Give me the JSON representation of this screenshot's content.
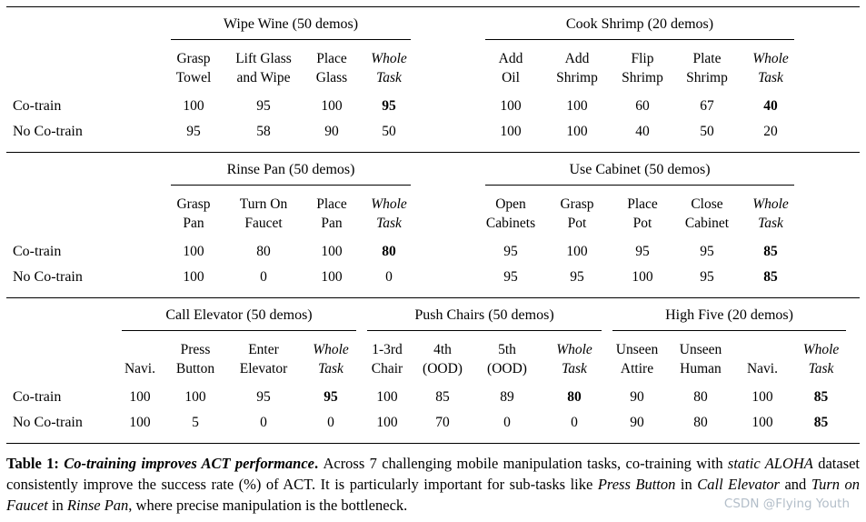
{
  "table": {
    "sections": [
      {
        "groups": [
          {
            "title": "Wipe Wine (50 demos)",
            "columns": [
              "Grasp\nTowel",
              "Lift Glass\nand Wipe",
              "Place\nGlass",
              "Whole\nTask"
            ]
          },
          {
            "title": "Cook Shrimp (20 demos)",
            "columns": [
              "Add\nOil",
              "Add\nShrimp",
              "Flip\nShrimp",
              "Plate\nShrimp",
              "Whole\nTask"
            ]
          }
        ],
        "rows": [
          {
            "label": "Co-train",
            "values": [
              "100",
              "95",
              "100",
              "95",
              "100",
              "100",
              "60",
              "67",
              "40"
            ]
          },
          {
            "label": "No Co-train",
            "values": [
              "95",
              "58",
              "90",
              "50",
              "100",
              "100",
              "40",
              "50",
              "20"
            ]
          }
        ]
      },
      {
        "groups": [
          {
            "title": "Rinse Pan (50 demos)",
            "columns": [
              "Grasp\nPan",
              "Turn On\nFaucet",
              "Place\nPan",
              "Whole\nTask"
            ]
          },
          {
            "title": "Use Cabinet (50 demos)",
            "columns": [
              "Open\nCabinets",
              "Grasp\nPot",
              "Place\nPot",
              "Close\nCabinet",
              "Whole\nTask"
            ]
          }
        ],
        "rows": [
          {
            "label": "Co-train",
            "values": [
              "100",
              "80",
              "100",
              "80",
              "95",
              "100",
              "95",
              "95",
              "85"
            ]
          },
          {
            "label": "No Co-train",
            "values": [
              "100",
              "0",
              "100",
              "0",
              "95",
              "95",
              "100",
              "95",
              "85"
            ]
          }
        ]
      },
      {
        "groups": [
          {
            "title": "Call Elevator (50 demos)",
            "columns": [
              "Navi.",
              "Press\nButton",
              "Enter\nElevator",
              "Whole\nTask"
            ]
          },
          {
            "title": "Push Chairs (50 demos)",
            "columns": [
              "1-3rd\nChair",
              "4th\n(OOD)",
              "5th\n(OOD)",
              "Whole\nTask"
            ]
          },
          {
            "title": "High Five (20 demos)",
            "columns": [
              "Unseen\nAttire",
              "Unseen\nHuman",
              "Navi.",
              "Whole\nTask"
            ]
          }
        ],
        "rows": [
          {
            "label": "Co-train",
            "values": [
              "100",
              "100",
              "95",
              "95",
              "100",
              "85",
              "89",
              "80",
              "90",
              "80",
              "100",
              "85"
            ]
          },
          {
            "label": "No Co-train",
            "values": [
              "100",
              "5",
              "0",
              "0",
              "100",
              "70",
              "0",
              "0",
              "90",
              "80",
              "100",
              "85"
            ]
          }
        ]
      }
    ]
  },
  "caption": {
    "segments": [
      {
        "text": "Table 1: "
      },
      {
        "text": "Co-training improves ACT performance"
      },
      {
        "text": ". "
      },
      {
        "text": "Across 7 challenging mobile manipulation tasks, co-training with "
      },
      {
        "text": "static ALOHA"
      },
      {
        "text": " dataset consistently improve the success rate (%) of ACT. It is particularly important for sub-tasks like "
      },
      {
        "text": "Press Button"
      },
      {
        "text": " in "
      },
      {
        "text": "Call Elevator"
      },
      {
        "text": " and "
      },
      {
        "text": "Turn on Faucet"
      },
      {
        "text": " in "
      },
      {
        "text": "Rinse Pan"
      },
      {
        "text": ", where precise manipulation is the bottleneck."
      }
    ]
  },
  "watermark": {
    "text": "CSDN @Flying Youth",
    "color": "#b3bec9"
  }
}
